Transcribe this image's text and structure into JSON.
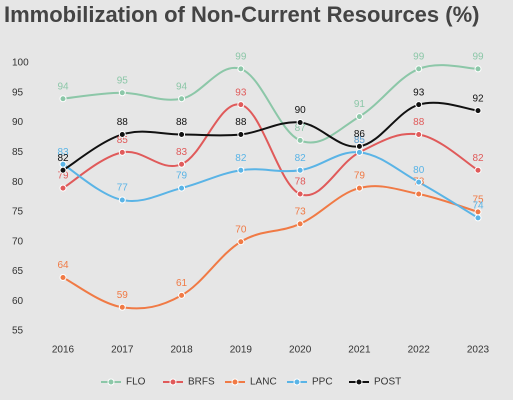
{
  "chart_data": {
    "type": "line",
    "title": "Immobilization of Non-Current Resources (%)",
    "x": [
      2016,
      2017,
      2018,
      2019,
      2020,
      2021,
      2022,
      2023
    ],
    "ylim": [
      53,
      101
    ],
    "yticks": [
      55,
      60,
      65,
      70,
      75,
      80,
      85,
      90,
      95,
      100
    ],
    "series": [
      {
        "name": "FLO",
        "color": "#8cc7a8",
        "values": [
          94,
          95,
          94,
          99,
          87,
          91,
          99,
          99
        ]
      },
      {
        "name": "BRFS",
        "color": "#e05a5a",
        "values": [
          79,
          85,
          83,
          93,
          78,
          85,
          88,
          82
        ]
      },
      {
        "name": "LANC",
        "color": "#f07a45",
        "values": [
          64,
          59,
          61,
          70,
          73,
          79,
          78,
          75
        ]
      },
      {
        "name": "PPC",
        "color": "#5ab4e6",
        "values": [
          83,
          77,
          79,
          82,
          82,
          85,
          80,
          74
        ]
      },
      {
        "name": "POST",
        "color": "#111111",
        "values": [
          82,
          88,
          88,
          88,
          90,
          86,
          93,
          92
        ]
      }
    ]
  }
}
